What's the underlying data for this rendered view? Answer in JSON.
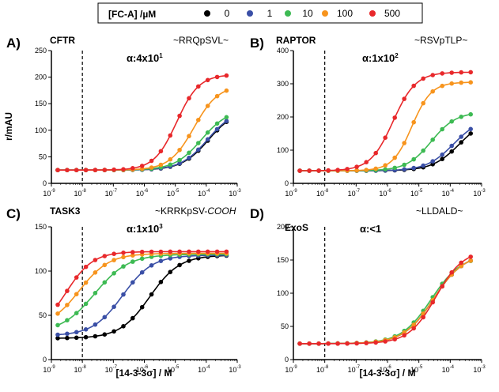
{
  "legend": {
    "title": "[FC-A] /µM",
    "entries": [
      {
        "label": "0",
        "color": "#000000"
      },
      {
        "label": "1",
        "color": "#3a4fa6"
      },
      {
        "label": "10",
        "color": "#3dba53"
      },
      {
        "label": "100",
        "color": "#f7941d"
      },
      {
        "label": "500",
        "color": "#e8282b"
      }
    ]
  },
  "y_axis_title": "r/mAU",
  "x_axis_title": "[14-3-3σ] / M",
  "x_tick_labels": [
    "10",
    "10",
    "10",
    "10",
    "10",
    "10",
    "10"
  ],
  "x_tick_exponents": [
    "-9",
    "-8",
    "-7",
    "-6",
    "-5",
    "-4",
    "-3"
  ],
  "chart_data": [
    {
      "type": "scatter",
      "letter": "A)",
      "protein": "CFTR",
      "motif": "~RRQpSVL~",
      "alpha_text": "α:4x10",
      "alpha_exp": "1",
      "x_scale": "log",
      "xlim": [
        1e-09,
        0.001
      ],
      "ylim": [
        0,
        250
      ],
      "y_ticks": [
        0,
        50,
        100,
        150,
        200,
        250
      ],
      "dashed_line_x": 1e-08,
      "curves": [
        {
          "conc": "0",
          "bottom": 25,
          "top": 140,
          "ec50": 0.00012,
          "hill": 1.0
        },
        {
          "conc": "1",
          "bottom": 25,
          "top": 140,
          "ec50": 0.00011,
          "hill": 1.0
        },
        {
          "conc": "10",
          "bottom": 25,
          "top": 140,
          "ec50": 7e-05,
          "hill": 1.0
        },
        {
          "conc": "100",
          "bottom": 25,
          "top": 185,
          "ec50": 4e-05,
          "hill": 1.1
        },
        {
          "conc": "500",
          "bottom": 25,
          "top": 205,
          "ec50": 1.1e-05,
          "hill": 1.2
        }
      ]
    },
    {
      "type": "scatter",
      "letter": "B)",
      "protein": "RAPTOR",
      "motif": "~RSVpTLP~",
      "alpha_text": "α:1x10",
      "alpha_exp": "2",
      "x_scale": "log",
      "xlim": [
        1e-09,
        0.001
      ],
      "ylim": [
        0,
        400
      ],
      "y_ticks": [
        0,
        100,
        200,
        300,
        400
      ],
      "dashed_line_x": 1e-08,
      "curves": [
        {
          "conc": "0",
          "bottom": 38,
          "top": 200,
          "ec50": 0.0002,
          "hill": 1.0
        },
        {
          "conc": "1",
          "bottom": 38,
          "top": 200,
          "ec50": 0.00013,
          "hill": 1.0
        },
        {
          "conc": "10",
          "bottom": 38,
          "top": 215,
          "ec50": 2.5e-05,
          "hill": 1.1
        },
        {
          "conc": "100",
          "bottom": 38,
          "top": 305,
          "ec50": 6e-06,
          "hill": 1.4
        },
        {
          "conc": "500",
          "bottom": 38,
          "top": 335,
          "ec50": 1.5e-06,
          "hill": 1.2
        }
      ]
    },
    {
      "type": "scatter",
      "letter": "C)",
      "protein": "TASK3",
      "motif": "~KRRKpSV-",
      "motif_italic": "COOH",
      "alpha_text": "α:1x10",
      "alpha_exp": "3",
      "x_scale": "log",
      "xlim": [
        1e-09,
        0.001
      ],
      "ylim": [
        0,
        150
      ],
      "y_ticks": [
        0,
        50,
        100,
        150
      ],
      "dashed_line_x": 1e-08,
      "curves": [
        {
          "conc": "0",
          "bottom": 24,
          "top": 118,
          "ec50": 1.5e-06,
          "hill": 0.9
        },
        {
          "conc": "1",
          "bottom": 27,
          "top": 118,
          "ec50": 2e-07,
          "hill": 0.9
        },
        {
          "conc": "10",
          "bottom": 30,
          "top": 119,
          "ec50": 2.5e-08,
          "hill": 0.8
        },
        {
          "conc": "100",
          "bottom": 36,
          "top": 120,
          "ec50": 8e-09,
          "hill": 0.9
        },
        {
          "conc": "500",
          "bottom": 30,
          "top": 122,
          "ec50": 3e-09,
          "hill": 1.0
        }
      ]
    },
    {
      "type": "scatter",
      "letter": "D)",
      "protein": "ExoS",
      "motif": "~LLDALD~",
      "alpha_text": "α:<1",
      "alpha_exp": "",
      "x_scale": "log",
      "xlim": [
        1e-09,
        0.001
      ],
      "ylim": [
        0,
        200
      ],
      "y_ticks": [
        0,
        50,
        100,
        150,
        200
      ],
      "dashed_line_x": 1e-08,
      "curves": [
        {
          "conc": "0",
          "bottom": 24,
          "top": 160,
          "ec50": 3e-05,
          "hill": 0.9
        },
        {
          "conc": "1",
          "bottom": 24,
          "top": 160,
          "ec50": 3e-05,
          "hill": 0.9
        },
        {
          "conc": "10",
          "bottom": 24,
          "top": 158,
          "ec50": 2.5e-05,
          "hill": 0.9
        },
        {
          "conc": "100",
          "bottom": 24,
          "top": 160,
          "ec50": 3e-05,
          "hill": 0.9
        },
        {
          "conc": "500",
          "bottom": 24,
          "top": 165,
          "ec50": 3.5e-05,
          "hill": 1.0
        }
      ]
    }
  ]
}
